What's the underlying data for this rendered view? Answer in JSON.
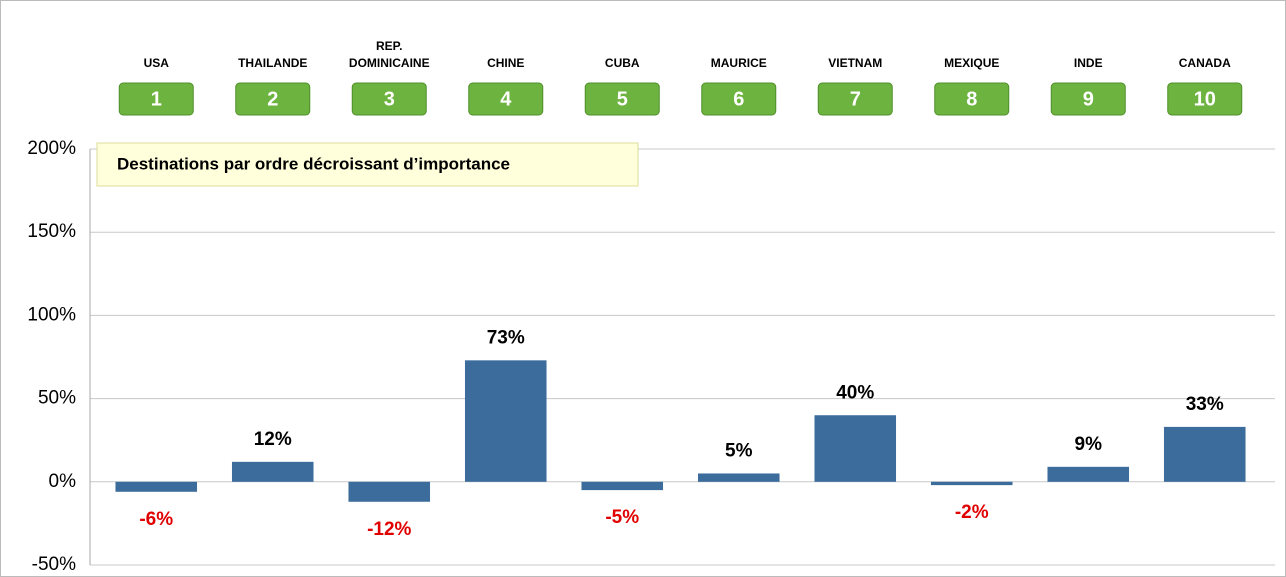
{
  "chart_data": {
    "type": "bar",
    "annotation": "Destinations par ordre décroissant d’importance",
    "categories": [
      "USA",
      "THAILANDE",
      "REP.\nDOMINICAINE",
      "CHINE",
      "CUBA",
      "MAURICE",
      "VIETNAM",
      "MEXIQUE",
      "INDE",
      "CANADA"
    ],
    "ranks": [
      1,
      2,
      3,
      4,
      5,
      6,
      7,
      8,
      9,
      10
    ],
    "values": [
      -6,
      12,
      -12,
      73,
      -5,
      5,
      40,
      -2,
      9,
      33
    ],
    "value_labels": [
      "-6%",
      "12%",
      "-12%",
      "73%",
      "-5%",
      "5%",
      "40%",
      "-2%",
      "9%",
      "33%"
    ],
    "color": "#3b6c9b",
    "rank_color": "#6db33f",
    "label_colors": {
      "positive": "#000000",
      "negative": "#e00000"
    },
    "ylim": [
      -50,
      200
    ],
    "yticks": [
      {
        "value": -50,
        "label": "-50%"
      },
      {
        "value": 0,
        "label": "0%"
      },
      {
        "value": 50,
        "label": "50%"
      },
      {
        "value": 100,
        "label": "100%"
      },
      {
        "value": 150,
        "label": "150%"
      },
      {
        "value": 200,
        "label": "200%"
      }
    ],
    "grid": true
  }
}
